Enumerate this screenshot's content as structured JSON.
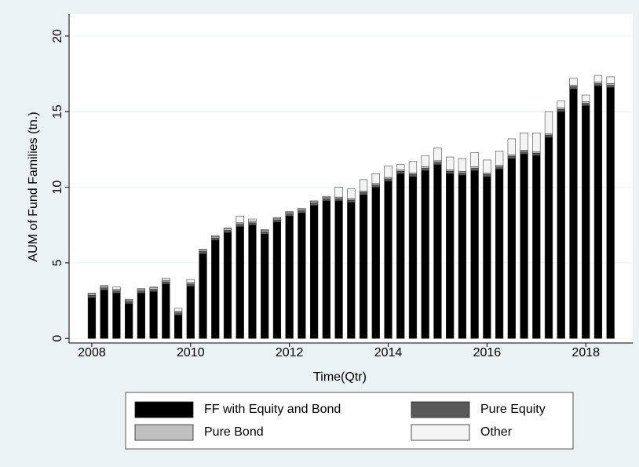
{
  "chart_data": {
    "type": "stacked_bar",
    "xlabel": "Time(Qtr)",
    "ylabel": "AUM of Fund Families (tn.)",
    "x": [
      2008,
      2008.25,
      2008.5,
      2008.75,
      2009,
      2009.25,
      2009.5,
      2009.75,
      2010,
      2010.25,
      2010.5,
      2010.75,
      2011,
      2011.25,
      2011.5,
      2011.75,
      2012,
      2012.25,
      2012.5,
      2012.75,
      2013,
      2013.25,
      2013.5,
      2013.75,
      2014,
      2014.25,
      2014.5,
      2014.75,
      2015,
      2015.25,
      2015.5,
      2015.75,
      2016,
      2016.25,
      2016.5,
      2016.75,
      2017,
      2017.25,
      2017.5,
      2017.75,
      2018,
      2018.25,
      2018.5
    ],
    "series": [
      {
        "name": "FF with Equity and Bond",
        "color": "#000000",
        "values": [
          2.7,
          3.2,
          3.0,
          2.3,
          3.0,
          3.1,
          3.6,
          1.55,
          3.45,
          5.6,
          6.5,
          7.0,
          7.4,
          7.5,
          6.9,
          7.7,
          8.1,
          8.3,
          8.8,
          9.1,
          9.1,
          9.0,
          9.5,
          10.0,
          10.4,
          10.9,
          10.7,
          11.1,
          11.5,
          10.9,
          10.8,
          11.1,
          10.7,
          11.2,
          11.9,
          12.2,
          12.1,
          13.3,
          15.0,
          16.5,
          15.4,
          16.7,
          16.6
        ]
      },
      {
        "name": "Pure Equity",
        "color": "#595959",
        "values": [
          0.15,
          0.15,
          0.15,
          0.15,
          0.15,
          0.15,
          0.15,
          0.15,
          0.15,
          0.15,
          0.15,
          0.15,
          0.15,
          0.15,
          0.15,
          0.15,
          0.15,
          0.15,
          0.15,
          0.15,
          0.15,
          0.15,
          0.15,
          0.15,
          0.15,
          0.15,
          0.15,
          0.15,
          0.15,
          0.15,
          0.15,
          0.15,
          0.15,
          0.15,
          0.15,
          0.15,
          0.15,
          0.15,
          0.15,
          0.15,
          0.15,
          0.15,
          0.15
        ]
      },
      {
        "name": "Pure Bond",
        "color": "#c0c0c0",
        "values": [
          0.1,
          0.1,
          0.1,
          0.1,
          0.1,
          0.1,
          0.1,
          0.1,
          0.1,
          0.1,
          0.1,
          0.1,
          0.1,
          0.1,
          0.1,
          0.1,
          0.1,
          0.1,
          0.1,
          0.1,
          0.1,
          0.1,
          0.1,
          0.1,
          0.1,
          0.1,
          0.1,
          0.1,
          0.1,
          0.1,
          0.1,
          0.1,
          0.1,
          0.1,
          0.1,
          0.1,
          0.1,
          0.1,
          0.1,
          0.1,
          0.1,
          0.1,
          0.1
        ]
      },
      {
        "name": "Other",
        "color": "#f4f4f4",
        "values": [
          0.05,
          0.05,
          0.15,
          0.05,
          0.05,
          0.05,
          0.15,
          0.2,
          0.2,
          0.05,
          0.05,
          0.05,
          0.45,
          0.15,
          0.05,
          0.05,
          0.05,
          0.05,
          0.05,
          0.05,
          0.65,
          0.65,
          0.75,
          0.65,
          0.75,
          0.35,
          0.75,
          0.75,
          0.85,
          0.85,
          0.85,
          0.95,
          0.85,
          0.95,
          1.05,
          1.15,
          1.25,
          1.45,
          0.45,
          0.45,
          0.45,
          0.45,
          0.45
        ]
      }
    ],
    "xlim": [
      2007.54,
      2018.95
    ],
    "xticks": [
      2008,
      2010,
      2012,
      2014,
      2016,
      2018
    ],
    "ylim": [
      -0.3,
      21.45
    ],
    "yticks": [
      0,
      5,
      10,
      15,
      20
    ],
    "grid": true
  }
}
